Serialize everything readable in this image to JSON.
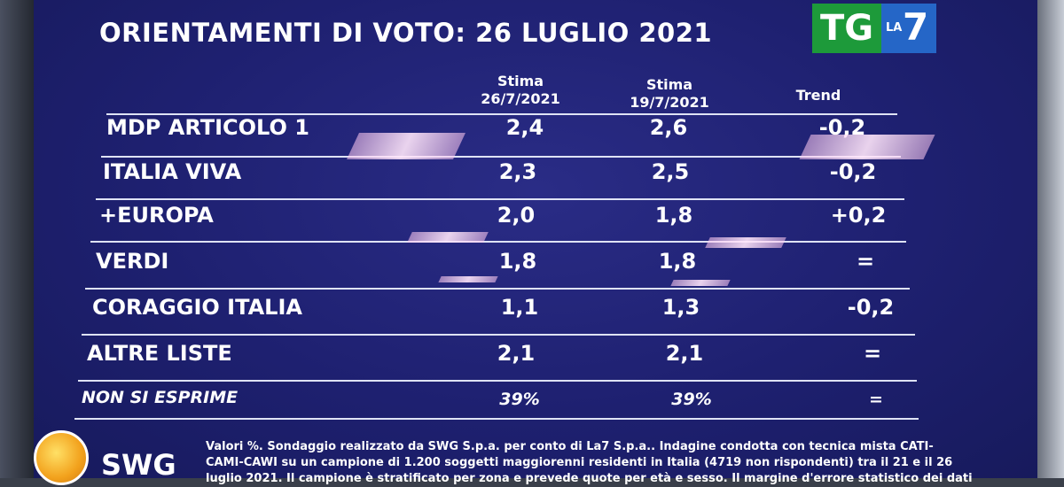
{
  "title": "ORIENTAMENTI DI VOTO: 26 LUGLIO 2021",
  "logo": {
    "tg": "TG",
    "la": "LA",
    "seven": "7"
  },
  "headers": {
    "col1_line1": "Stima",
    "col1_line2": "26/7/2021",
    "col2_line1": "Stima",
    "col2_line2": "19/7/2021",
    "col3": "Trend"
  },
  "chart_data": {
    "type": "table",
    "columns": [
      "Stima 26/7/2021",
      "Stima 19/7/2021",
      "Trend"
    ],
    "rows": [
      {
        "label": "MDP ARTICOLO 1",
        "current": "2,4",
        "previous": "2,6",
        "trend": "-0,2"
      },
      {
        "label": "ITALIA VIVA",
        "current": "2,3",
        "previous": "2,5",
        "trend": "-0,2"
      },
      {
        "label": "+EUROPA",
        "current": "2,0",
        "previous": "1,8",
        "trend": "+0,2"
      },
      {
        "label": "VERDI",
        "current": "1,8",
        "previous": "1,8",
        "trend": "="
      },
      {
        "label": "CORAGGIO ITALIA",
        "current": "1,1",
        "previous": "1,3",
        "trend": "-0,2"
      },
      {
        "label": "ALTRE LISTE",
        "current": "2,1",
        "previous": "2,1",
        "trend": "="
      },
      {
        "label": "NON SI ESPRIME",
        "current": "39%",
        "previous": "39%",
        "trend": "="
      }
    ]
  },
  "footer": {
    "brand": "SWG",
    "note_lines": [
      "Valori %. Sondaggio realizzato da SWG S.p.a. per conto di La7 S.p.a.. Indagine condotta con tecnica mista CATI-",
      "CAMI-CAWI su un campione di 1.200 soggetti maggiorenni residenti in Italia (4719 non rispondenti) tra il 21 e il 26",
      "luglio 2021. Il campione è stratificato per zona e prevede quote per età e sesso. Il margine d'errore statistico dei dati"
    ]
  }
}
